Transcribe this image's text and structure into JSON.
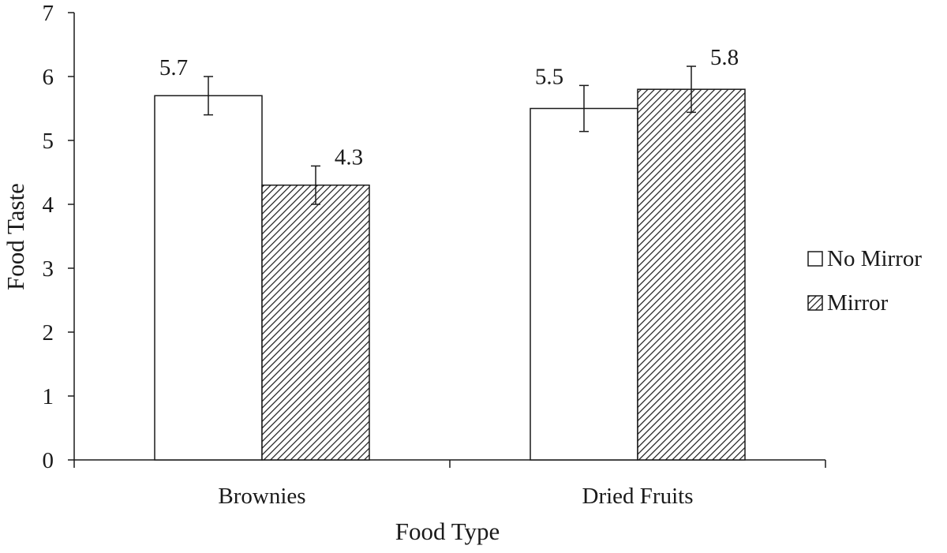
{
  "chart_data": {
    "type": "bar",
    "title": "",
    "xlabel": "Food Type",
    "ylabel": "Food Taste",
    "categories": [
      "Brownies",
      "Dried Fruits"
    ],
    "ylim": [
      0,
      7
    ],
    "yticks": [
      "0",
      "1",
      "2",
      "3",
      "4",
      "5",
      "6",
      "7"
    ],
    "series": [
      {
        "name": "No Mirror",
        "values": [
          5.7,
          5.5
        ],
        "value_labels": [
          "5.7",
          "5.5"
        ],
        "error": [
          0.3,
          0.36
        ],
        "fill": "#ffffff",
        "pattern": "none"
      },
      {
        "name": "Mirror",
        "values": [
          4.3,
          5.8
        ],
        "value_labels": [
          "4.3",
          "5.8"
        ],
        "error": [
          0.3,
          0.36
        ],
        "fill": "#ffffff",
        "pattern": "diagonal-hatch"
      }
    ],
    "legend_position": "right",
    "grid": false,
    "colors": {
      "stroke": "#1a1a1a",
      "background": "#ffffff"
    }
  }
}
